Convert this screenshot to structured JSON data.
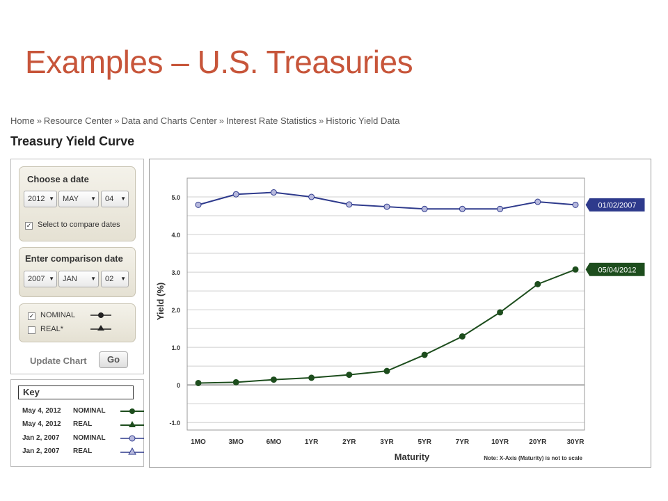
{
  "slide": {
    "title": "Examples – U.S. Treasuries"
  },
  "breadcrumb": [
    "Home",
    "Resource Center",
    "Data and Charts Center",
    "Interest Rate Statistics",
    "Historic Yield Data"
  ],
  "breadcrumb_separator": "»",
  "page_heading": "Treasury Yield Curve",
  "choose_date": {
    "title": "Choose a date",
    "year": "2012",
    "month": "MAY",
    "day": "04",
    "compare_checkbox_label": "Select to compare dates",
    "compare_checked": true
  },
  "comparison_date": {
    "title": "Enter comparison date",
    "year": "2007",
    "month": "JAN",
    "day": "02"
  },
  "series_toggle": {
    "nominal_label": "NOMINAL",
    "nominal_checked": true,
    "real_label": "REAL*",
    "real_checked": false
  },
  "update": {
    "label": "Update Chart",
    "button": "Go"
  },
  "key": {
    "title": "Key",
    "rows": [
      {
        "date": "May 4, 2012",
        "type": "NOMINAL",
        "color": "#1d4d1d",
        "marker": "circle-filled"
      },
      {
        "date": "May 4, 2012",
        "type": "REAL",
        "color": "#1d4d1d",
        "marker": "triangle-filled"
      },
      {
        "date": "Jan 2, 2007",
        "type": "NOMINAL",
        "color": "#2e3a8c",
        "marker": "circle-open"
      },
      {
        "date": "Jan 2, 2007",
        "type": "REAL",
        "color": "#2e3a8c",
        "marker": "triangle-open"
      }
    ]
  },
  "chart_data": {
    "type": "line",
    "xlabel": "Maturity",
    "ylabel": "Yield   (%)",
    "note": "Note: X-Axis (Maturity) is not to scale",
    "categories": [
      "1MO",
      "3MO",
      "6MO",
      "1YR",
      "2YR",
      "3YR",
      "5YR",
      "7YR",
      "10YR",
      "20YR",
      "30YR"
    ],
    "yticks": [
      "5.0",
      "4.0",
      "3.0",
      "2.0",
      "1.0",
      "0",
      "-1.0"
    ],
    "ylim": [
      -1.2,
      5.5
    ],
    "grid": true,
    "series": [
      {
        "name": "01/02/2007",
        "color": "#2e3a8c",
        "marker_fill": "#b7b9dd",
        "values": [
          4.79,
          5.07,
          5.12,
          5.0,
          4.8,
          4.74,
          4.68,
          4.68,
          4.68,
          4.87,
          4.79
        ]
      },
      {
        "name": "05/04/2012",
        "color": "#1d4d1d",
        "marker_fill": "#1d4d1d",
        "values": [
          0.05,
          0.07,
          0.14,
          0.19,
          0.27,
          0.37,
          0.8,
          1.29,
          1.93,
          2.68,
          3.07
        ]
      }
    ]
  }
}
